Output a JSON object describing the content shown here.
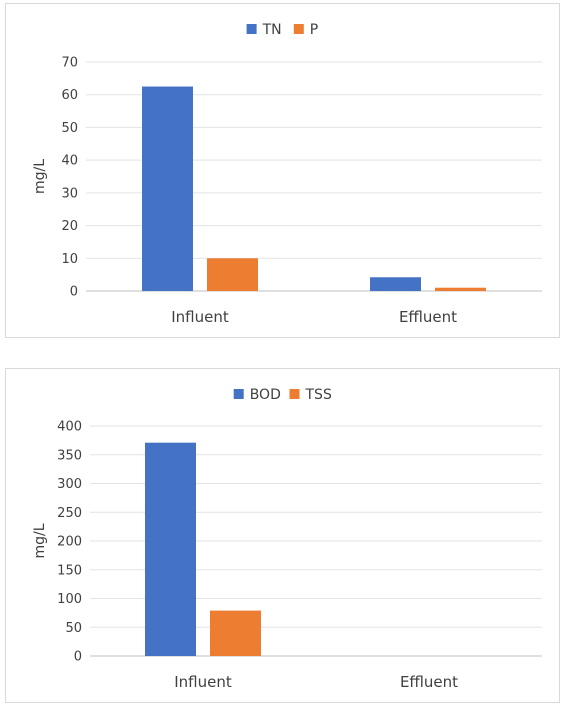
{
  "chart_data": [
    {
      "type": "bar",
      "categories": [
        "Influent",
        "Effluent"
      ],
      "series": [
        {
          "name": "TN",
          "values": [
            62.5,
            4.2
          ],
          "color": "#4472c4"
        },
        {
          "name": "P",
          "values": [
            10,
            1
          ],
          "color": "#ed7d31"
        }
      ],
      "ylabel": "mg/L",
      "ylim": [
        0,
        70
      ],
      "yticks": [
        0,
        10,
        20,
        30,
        40,
        50,
        60,
        70
      ],
      "grid": true,
      "legend": "top"
    },
    {
      "type": "bar",
      "categories": [
        "Influent",
        "Effluent"
      ],
      "series": [
        {
          "name": "BOD",
          "values": [
            371,
            0
          ],
          "color": "#4472c4"
        },
        {
          "name": "TSS",
          "values": [
            79,
            0
          ],
          "color": "#ed7d31"
        }
      ],
      "ylabel": "mg/L",
      "ylim": [
        0,
        400
      ],
      "yticks": [
        0,
        50,
        100,
        150,
        200,
        250,
        300,
        350,
        400
      ],
      "grid": true,
      "legend": "top"
    }
  ]
}
